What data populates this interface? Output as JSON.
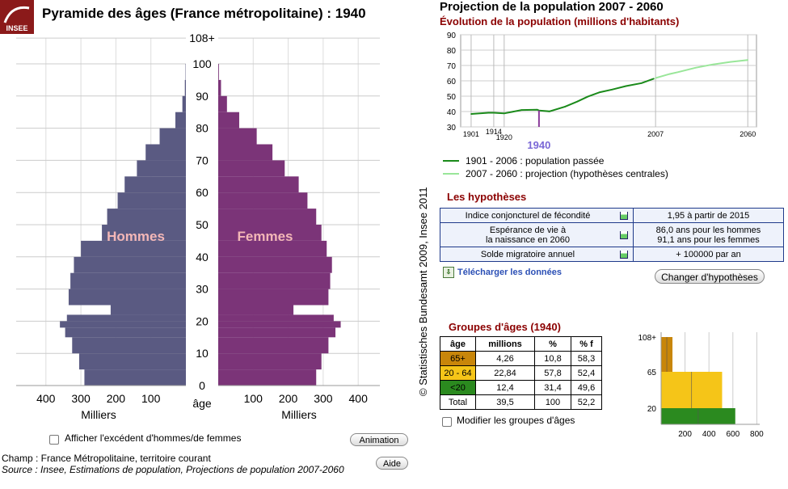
{
  "header": {
    "logo_text": "INSEE",
    "title": "Pyramide des âges (France métropolitaine) : 1940"
  },
  "pyramid": {
    "men_label": "Hommes",
    "women_label": "Femmes",
    "x_ticks_men": [
      "400",
      "300",
      "200",
      "100"
    ],
    "x_ticks_women": [
      "100",
      "200",
      "300",
      "400"
    ],
    "axis_unit": "Milliers",
    "age_axis_label": "âge",
    "age_ticks": [
      "0",
      "10",
      "20",
      "30",
      "40",
      "50",
      "60",
      "70",
      "80",
      "90",
      "100",
      "108+"
    ]
  },
  "credit": "© Statistisches Bundesamt 2009, Insee 2011",
  "controls": {
    "excess_label": "Afficher l'excédent d'hommes/de femmes",
    "animation_button": "Animation",
    "help_button": "Aide"
  },
  "footer": {
    "champ": "Champ : France Métropolitaine, territoire courant",
    "source": "Source : Insee, Estimations de population, Projections de population 2007-2060"
  },
  "projection": {
    "title": "Projection de la population 2007 - 2060",
    "subtitle": "Évolution de la population (millions d'habitants)",
    "y_ticks": [
      "30",
      "40",
      "50",
      "60",
      "70",
      "80",
      "90"
    ],
    "year_labels": [
      "1901",
      "1914",
      "1920",
      "2007",
      "2060"
    ],
    "current_year": "1940",
    "legend": [
      {
        "label": "1901 - 2006 : population passée",
        "color": "#1a8a1a"
      },
      {
        "label": "2007 - 2060 : projection (hypothèses centrales)",
        "color": "#99e699"
      }
    ]
  },
  "chart_data": [
    {
      "type": "bar",
      "title": "Pyramide des âges (France métropolitaine) : 1940",
      "xlabel": "Milliers",
      "ylabel": "âge",
      "ylim": [
        0,
        108
      ],
      "xlim": [
        0,
        450
      ],
      "series": [
        {
          "name": "Hommes",
          "color": "#5a5a82",
          "bands": [
            {
              "age": [
                0,
                5
              ],
              "value": 290
            },
            {
              "age": [
                5,
                10
              ],
              "value": 305
            },
            {
              "age": [
                10,
                15
              ],
              "value": 325
            },
            {
              "age": [
                15,
                18
              ],
              "value": 345
            },
            {
              "age": [
                18,
                20
              ],
              "value": 360
            },
            {
              "age": [
                20,
                22
              ],
              "value": 340
            },
            {
              "age": [
                22,
                25
              ],
              "value": 215
            },
            {
              "age": [
                25,
                30
              ],
              "value": 335
            },
            {
              "age": [
                30,
                35
              ],
              "value": 330
            },
            {
              "age": [
                35,
                40
              ],
              "value": 320
            },
            {
              "age": [
                40,
                45
              ],
              "value": 300
            },
            {
              "age": [
                45,
                50
              ],
              "value": 240
            },
            {
              "age": [
                50,
                55
              ],
              "value": 225
            },
            {
              "age": [
                55,
                60
              ],
              "value": 195
            },
            {
              "age": [
                60,
                65
              ],
              "value": 175
            },
            {
              "age": [
                65,
                70
              ],
              "value": 140
            },
            {
              "age": [
                70,
                75
              ],
              "value": 115
            },
            {
              "age": [
                75,
                80
              ],
              "value": 75
            },
            {
              "age": [
                80,
                85
              ],
              "value": 30
            },
            {
              "age": [
                85,
                90
              ],
              "value": 10
            },
            {
              "age": [
                90,
                95
              ],
              "value": 3
            },
            {
              "age": [
                95,
                100
              ],
              "value": 1
            }
          ]
        },
        {
          "name": "Femmes",
          "color": "#7b3478",
          "bands": [
            {
              "age": [
                0,
                5
              ],
              "value": 280
            },
            {
              "age": [
                5,
                10
              ],
              "value": 295
            },
            {
              "age": [
                10,
                15
              ],
              "value": 315
            },
            {
              "age": [
                15,
                18
              ],
              "value": 335
            },
            {
              "age": [
                18,
                20
              ],
              "value": 350
            },
            {
              "age": [
                20,
                22
              ],
              "value": 330
            },
            {
              "age": [
                22,
                25
              ],
              "value": 215
            },
            {
              "age": [
                25,
                30
              ],
              "value": 315
            },
            {
              "age": [
                30,
                35
              ],
              "value": 320
            },
            {
              "age": [
                35,
                40
              ],
              "value": 325
            },
            {
              "age": [
                40,
                45
              ],
              "value": 310
            },
            {
              "age": [
                45,
                50
              ],
              "value": 295
            },
            {
              "age": [
                50,
                55
              ],
              "value": 280
            },
            {
              "age": [
                55,
                60
              ],
              "value": 255
            },
            {
              "age": [
                60,
                65
              ],
              "value": 230
            },
            {
              "age": [
                65,
                70
              ],
              "value": 190
            },
            {
              "age": [
                70,
                75
              ],
              "value": 155
            },
            {
              "age": [
                75,
                80
              ],
              "value": 110
            },
            {
              "age": [
                80,
                85
              ],
              "value": 60
            },
            {
              "age": [
                85,
                90
              ],
              "value": 25
            },
            {
              "age": [
                90,
                95
              ],
              "value": 8
            },
            {
              "age": [
                95,
                100
              ],
              "value": 2
            }
          ]
        }
      ]
    },
    {
      "type": "line",
      "title": "Évolution de la population (millions d'habitants)",
      "ylim": [
        30,
        90
      ],
      "xlim": [
        1895,
        2065
      ],
      "series": [
        {
          "name": "1901 - 2006 : population passée",
          "color": "#1a8a1a",
          "x": [
            1901,
            1911,
            1914,
            1920,
            1930,
            1939,
            1940,
            1946,
            1955,
            1962,
            1968,
            1975,
            1982,
            1990,
            1999,
            2006
          ],
          "y": [
            38.4,
            39.2,
            39.2,
            38.8,
            41.0,
            41.2,
            40.7,
            40.1,
            43.2,
            46.5,
            49.7,
            52.6,
            54.3,
            56.6,
            58.5,
            61.4
          ]
        },
        {
          "name": "2007 - 2060 : projection (hypothèses centrales)",
          "color": "#99e699",
          "x": [
            2007,
            2015,
            2020,
            2030,
            2040,
            2050,
            2060
          ],
          "y": [
            61.8,
            64.4,
            65.7,
            68.5,
            70.7,
            72.3,
            73.6
          ]
        }
      ],
      "markers": [
        {
          "year": 1940,
          "color": "#8a3a9a"
        }
      ]
    },
    {
      "type": "bar",
      "title": "Groupes d'âges (1940)",
      "xlabel": "",
      "xlim": [
        0,
        900
      ],
      "y_ticks": [
        "20",
        "65",
        "108+"
      ],
      "x_ticks": [
        "200",
        "400",
        "600",
        "800"
      ],
      "series": [
        {
          "group": "<20",
          "age": [
            0,
            20
          ],
          "value": 620,
          "color": "#2b8a1f"
        },
        {
          "group": "20 - 64",
          "age": [
            20,
            65
          ],
          "value": 510,
          "color": "#f5c518"
        },
        {
          "group": "65+",
          "age": [
            65,
            108
          ],
          "value": 95,
          "color": "#c8860a"
        }
      ]
    }
  ],
  "hypotheses": {
    "title": "Les hypothèses",
    "rows": [
      {
        "label": "Indice conjoncturel de fécondité",
        "value": "1,95 à partir de 2015"
      },
      {
        "label": "Espérance de vie à\nla naissance en 2060",
        "value": "86,0 ans pour les hommes\n91,1 ans pour les femmes"
      },
      {
        "label": "Solde migratoire annuel",
        "value": "+ 100000 par an"
      }
    ],
    "download_link": "Télécharger les données",
    "change_button": "Changer d'hypothèses"
  },
  "groups": {
    "title": "Groupes d'âges (1940)",
    "headers": [
      "âge",
      "millions",
      "%",
      "% f"
    ],
    "rows": [
      {
        "age": "65+",
        "millions": "4,26",
        "pct": "10,8",
        "pctf": "58,3",
        "color": "#c8860a"
      },
      {
        "age": "20 - 64",
        "millions": "22,84",
        "pct": "57,8",
        "pctf": "52,4",
        "color": "#f5c518"
      },
      {
        "age": "<20",
        "millions": "12,4",
        "pct": "31,4",
        "pctf": "49,6",
        "color": "#2b8a1f"
      },
      {
        "age": "Total",
        "millions": "39,5",
        "pct": "100",
        "pctf": "52,2",
        "color": ""
      }
    ],
    "modify_label": "Modifier les groupes d'âges"
  }
}
